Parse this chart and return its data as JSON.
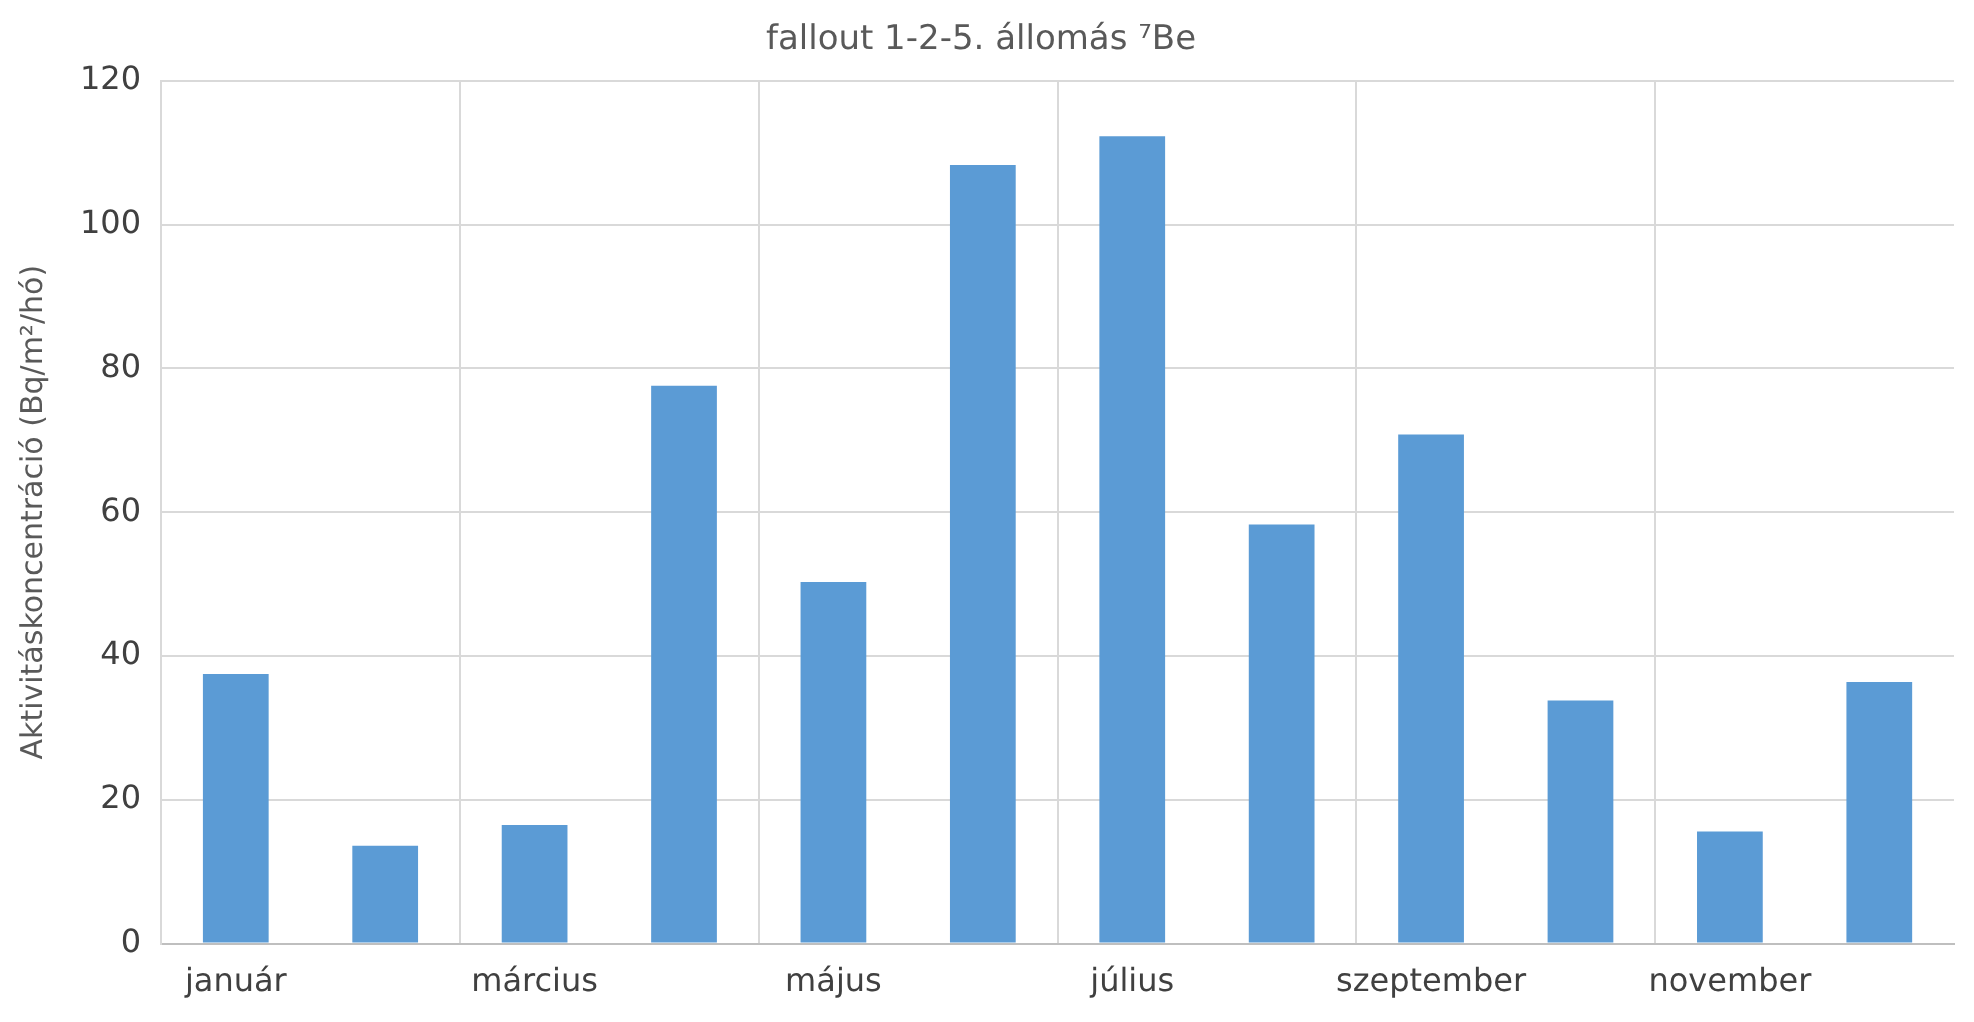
{
  "chart_data": {
    "type": "bar",
    "title": "fallout 1-2-5. állomás ⁷Be",
    "ylabel": "Aktivitáskoncentráció (Bq/m²/hó)",
    "categories": [
      "január",
      null,
      "március",
      null,
      "május",
      null,
      "július",
      null,
      "szeptember",
      null,
      "november",
      null
    ],
    "values": [
      37.5,
      13.6,
      16.5,
      77.6,
      50.3,
      108.3,
      112.3,
      58.3,
      70.8,
      33.8,
      15.6,
      36.4
    ],
    "color": "#5b9bd5",
    "ylim": [
      0,
      120
    ],
    "yticks": [
      0,
      20,
      40,
      60,
      80,
      100,
      120
    ],
    "grid": true,
    "legend": false
  }
}
